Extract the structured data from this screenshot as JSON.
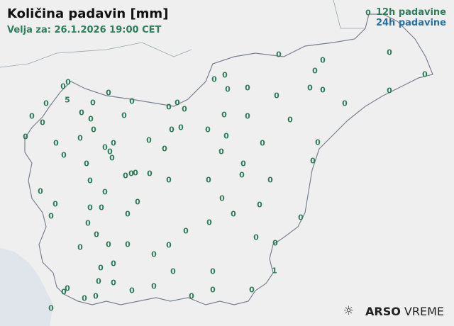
{
  "header": {
    "title": "Količina padavin [mm]",
    "valid_for": "Velja za: 26.1.2026 19:00 CET"
  },
  "legend": {
    "items": [
      {
        "label": "12h padavine",
        "color": "#2e7d5b"
      },
      {
        "label": "24h padavine",
        "color": "#2a6fa0"
      }
    ]
  },
  "logo": {
    "brand": "ARSO",
    "product": "VREME",
    "icon": "sun-icon"
  },
  "colors": {
    "value_text": "#2e7d5b",
    "land": "#efefef",
    "sea": "#dfe5ea",
    "border": "#7a8290"
  },
  "stations": {
    "values": [
      0,
      0,
      0,
      0,
      0,
      0,
      0,
      0,
      0,
      0,
      0,
      0,
      0,
      0,
      0,
      0,
      5,
      0,
      0,
      0,
      0,
      0,
      0,
      0,
      0,
      0,
      0,
      0,
      0,
      0,
      0,
      0,
      0,
      0,
      0,
      0,
      0,
      0,
      0,
      0,
      0,
      0,
      0,
      0,
      0,
      0,
      0,
      0,
      0,
      0,
      0,
      0,
      0,
      0,
      0,
      0,
      0,
      0,
      0,
      0,
      0,
      0,
      0,
      0,
      0,
      0,
      0,
      0,
      0,
      0,
      0,
      0,
      0,
      0,
      0,
      0,
      0,
      0,
      0,
      0,
      0,
      0,
      0,
      0,
      0,
      0,
      0,
      0,
      0,
      1,
      0,
      0,
      0,
      0,
      0,
      0,
      0,
      0,
      0,
      0,
      0,
      0,
      0
    ]
  }
}
